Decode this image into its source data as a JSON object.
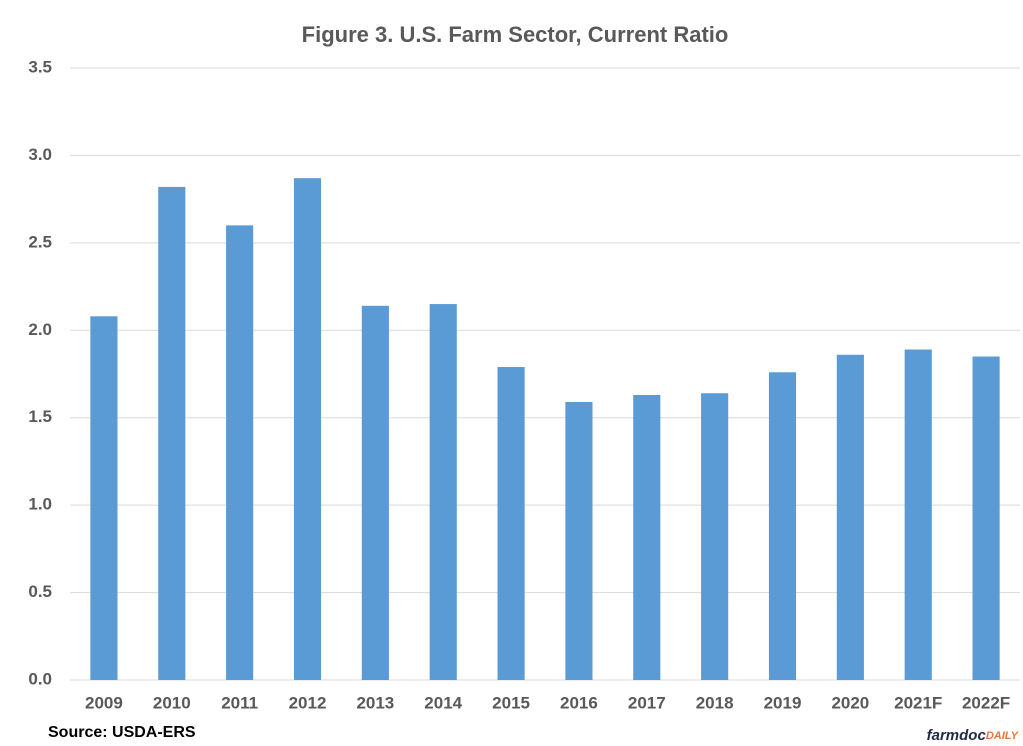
{
  "chart_data": {
    "type": "bar",
    "title": "Figure 3.  U.S. Farm Sector, Current Ratio",
    "categories": [
      "2009",
      "2010",
      "2011",
      "2012",
      "2013",
      "2014",
      "2015",
      "2016",
      "2017",
      "2018",
      "2019",
      "2020",
      "2021F",
      "2022F"
    ],
    "values": [
      2.08,
      2.82,
      2.6,
      2.87,
      2.14,
      2.15,
      1.79,
      1.59,
      1.63,
      1.64,
      1.76,
      1.86,
      1.89,
      1.85
    ],
    "color": "#5b9bd5",
    "ylim": [
      0,
      3.5
    ],
    "yticks": [
      {
        "value": 0,
        "label": "0.0"
      },
      {
        "value": 0.5,
        "label": "0.5"
      },
      {
        "value": 1,
        "label": "1.0"
      },
      {
        "value": 1.5,
        "label": "1.5"
      },
      {
        "value": 2,
        "label": "2.0"
      },
      {
        "value": 2.5,
        "label": "2.5"
      },
      {
        "value": 3,
        "label": "3.0"
      },
      {
        "value": 3.5,
        "label": "3.5"
      }
    ],
    "grid": true,
    "source": "Source: USDA-ERS",
    "brand": {
      "name": "farmdoc",
      "suffix": "DAILY"
    }
  }
}
